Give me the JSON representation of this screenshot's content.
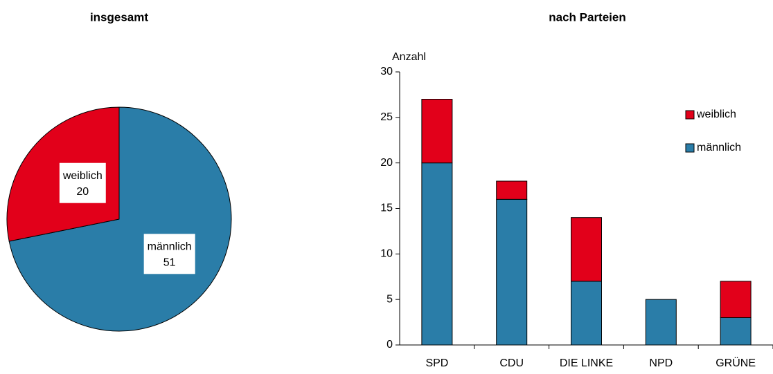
{
  "chart_data": [
    {
      "type": "pie",
      "title": "insgesamt",
      "categories": [
        "männlich",
        "weiblich"
      ],
      "values": [
        51,
        20
      ],
      "colors": [
        "#2a7da8",
        "#e2001a"
      ]
    },
    {
      "type": "bar",
      "title": "nach Parteien",
      "y_label": "Anzahl",
      "categories": [
        "SPD",
        "CDU",
        "DIE LINKE",
        "NPD",
        "GRÜNE"
      ],
      "series": [
        {
          "name": "männlich",
          "color": "#2a7da8",
          "values": [
            20,
            16,
            7,
            5,
            3
          ]
        },
        {
          "name": "weiblich",
          "color": "#e2001a",
          "values": [
            7,
            2,
            7,
            0,
            4
          ]
        }
      ],
      "stacked": true,
      "ylim": [
        0,
        30
      ],
      "yticks": [
        0,
        5,
        10,
        15,
        20,
        25,
        30
      ],
      "legend": "right"
    }
  ]
}
